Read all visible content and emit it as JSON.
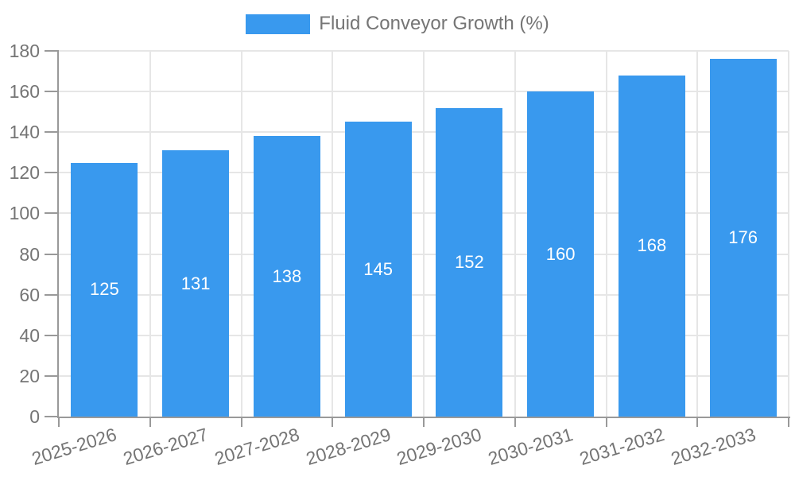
{
  "legend": {
    "label": "Fluid Conveyor Growth (%)"
  },
  "chart_data": {
    "type": "bar",
    "title": "",
    "legend_entries": [
      "Fluid Conveyor Growth (%)"
    ],
    "legend_position": "top",
    "categories": [
      "2025-2026",
      "2026-2027",
      "2027-2028",
      "2028-2029",
      "2029-2030",
      "2030-2031",
      "2031-2032",
      "2032-2033"
    ],
    "series": [
      {
        "name": "Fluid Conveyor Growth (%)",
        "values": [
          125,
          131,
          138,
          145,
          152,
          160,
          168,
          176
        ]
      }
    ],
    "value_labels": [
      125,
      131,
      138,
      145,
      152,
      160,
      168,
      176
    ],
    "value_label_position": "inside-center",
    "xlabel": "",
    "ylabel": "",
    "ylim": [
      0,
      180
    ],
    "ytick_step": 20,
    "yticks": [
      0,
      20,
      40,
      60,
      80,
      100,
      120,
      140,
      160,
      180
    ],
    "grid": true,
    "colors": {
      "bar": "#3999EE",
      "axis_text": "#757575",
      "value_text": "#FFFFFF",
      "gridline": "#E6E6E6",
      "axis_line": "#999999",
      "background": "#FFFFFF"
    }
  }
}
